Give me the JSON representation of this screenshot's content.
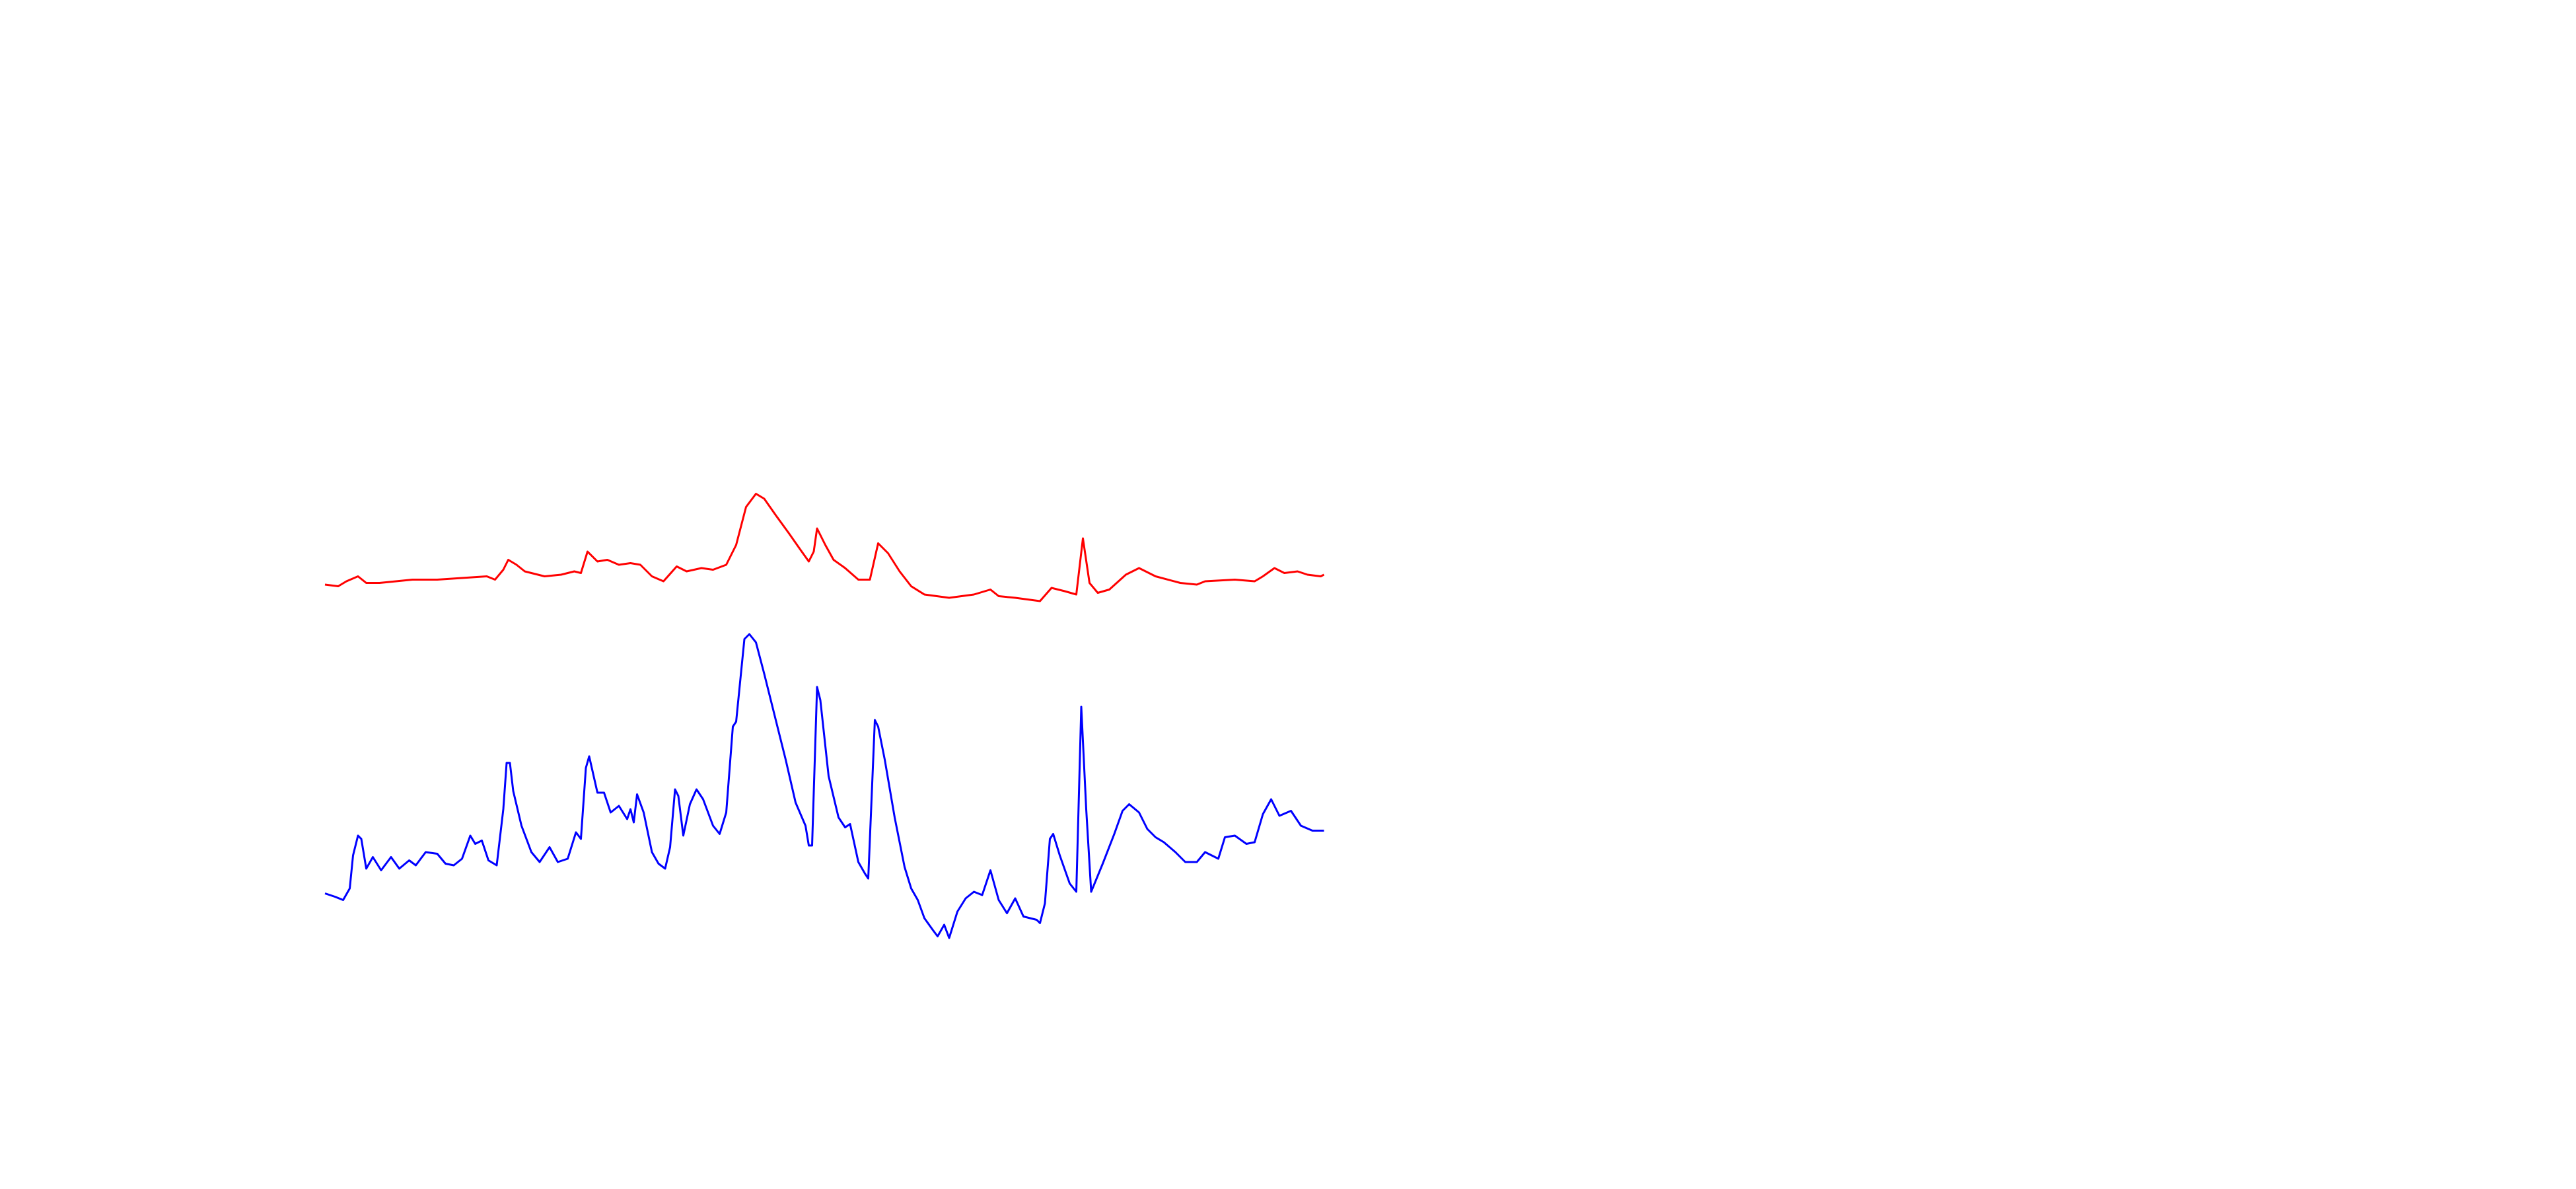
{
  "chart_data": {
    "type": "line",
    "xlim": [
      0,
      605
    ],
    "ylim": [
      0,
      720
    ],
    "series": [
      {
        "color": "#ff0000",
        "x": [
          0,
          8,
          13,
          20,
          25,
          33,
          43,
          53,
          68,
          83,
          98,
          103,
          108,
          111,
          116,
          121,
          133,
          143,
          151,
          155,
          159,
          165,
          171,
          178,
          185,
          191,
          198,
          205,
          213,
          219,
          228,
          235,
          243,
          249,
          255,
          261,
          266,
          273,
          281,
          288,
          293,
          296,
          298,
          303,
          308,
          315,
          323,
          330,
          335,
          341,
          348,
          355,
          363,
          378,
          393,
          403,
          408,
          418,
          433,
          440,
          448,
          455,
          459,
          463,
          468,
          475,
          485,
          493,
          503,
          518,
          528,
          533,
          551,
          563,
          568,
          575,
          581,
          589,
          595,
          603,
          605
        ],
        "values": [
          366,
          365,
          368,
          371,
          367,
          367,
          368,
          369,
          369,
          370,
          371,
          369,
          375,
          381,
          378,
          374,
          371,
          372,
          374,
          373,
          386,
          380,
          381,
          378,
          379,
          378,
          371,
          368,
          377,
          374,
          376,
          375,
          378,
          390,
          413,
          421,
          418,
          408,
          397,
          387,
          380,
          386,
          400,
          390,
          381,
          376,
          369,
          369,
          391,
          385,
          374,
          365,
          360,
          358,
          360,
          363,
          359,
          358,
          356,
          364,
          362,
          360,
          394,
          367,
          361,
          363,
          372,
          376,
          371,
          367,
          366,
          368,
          369,
          368,
          371,
          376,
          373,
          374,
          372,
          371,
          372
        ]
      },
      {
        "color": "#0000ff",
        "x": [
          0,
          6,
          11,
          15,
          17,
          20,
          22,
          25,
          29,
          34,
          40,
          45,
          51,
          55,
          61,
          68,
          73,
          78,
          83,
          88,
          91,
          95,
          99,
          104,
          108,
          110,
          112,
          114,
          119,
          125,
          130,
          136,
          141,
          147,
          152,
          155,
          158,
          160,
          165,
          169,
          173,
          178,
          183,
          185,
          187,
          189,
          193,
          198,
          202,
          206,
          209,
          212,
          214,
          217,
          221,
          225,
          229,
          235,
          239,
          243,
          247,
          249,
          254,
          257,
          261,
          266,
          273,
          279,
          285,
          291,
          293,
          295,
          298,
          300,
          305,
          311,
          315,
          318,
          323,
          327,
          329,
          333,
          335,
          339,
          345,
          351,
          355,
          359,
          363,
          368,
          371,
          375,
          378,
          383,
          388,
          393,
          398,
          403,
          408,
          413,
          418,
          423,
          431,
          433,
          436,
          439,
          441,
          445,
          451,
          455,
          458,
          461,
          464,
          471,
          478,
          483,
          487,
          493,
          498,
          503,
          508,
          515,
          521,
          528,
          533,
          541,
          545,
          551,
          558,
          563,
          568,
          573,
          578,
          585,
          591,
          598,
          605
        ],
        "values": [
          179,
          177,
          175,
          182,
          202,
          214,
          212,
          194,
          201,
          193,
          201,
          194,
          199,
          196,
          204,
          203,
          197,
          196,
          200,
          214,
          209,
          211,
          199,
          196,
          230,
          258,
          258,
          241,
          220,
          204,
          198,
          207,
          198,
          200,
          216,
          212,
          255,
          262,
          240,
          240,
          228,
          232,
          224,
          230,
          222,
          239,
          228,
          204,
          197,
          194,
          207,
          242,
          238,
          214,
          233,
          242,
          236,
          220,
          215,
          228,
          280,
          283,
          333,
          336,
          331,
          312,
          284,
          260,
          234,
          220,
          208,
          208,
          304,
          296,
          250,
          225,
          219,
          221,
          198,
          191,
          188,
          284,
          280,
          260,
          225,
          195,
          182,
          175,
          164,
          157,
          153,
          160,
          152,
          168,
          176,
          180,
          178,
          193,
          175,
          167,
          176,
          165,
          163,
          161,
          173,
          212,
          215,
          202,
          185,
          180,
          292,
          230,
          180,
          197,
          215,
          229,
          233,
          228,
          218,
          213,
          210,
          204,
          198,
          198,
          204,
          200,
          213,
          214,
          209,
          210,
          227,
          236,
          226,
          229,
          220,
          217,
          217
        ]
      }
    ]
  }
}
